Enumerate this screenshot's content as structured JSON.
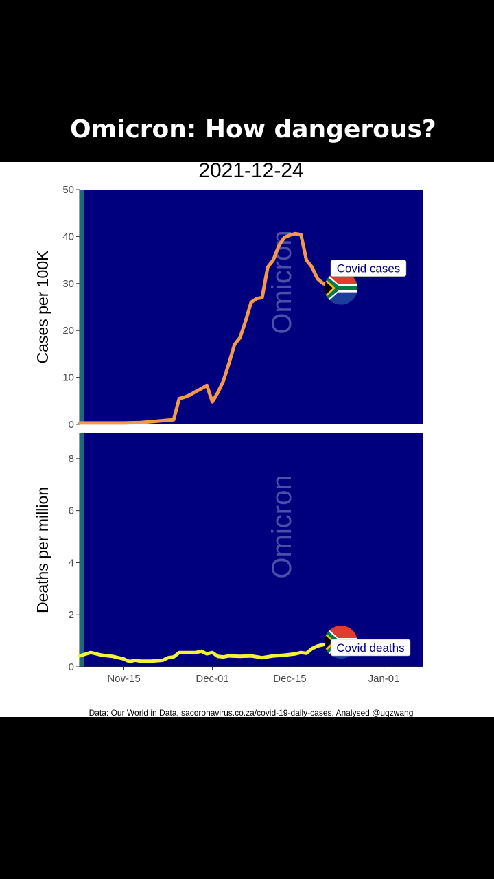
{
  "caption": "Omicron: How dangerous?",
  "date_label": "2021-12-24",
  "watermark": "Omicron",
  "source_note": "Data: Our World in Data, sacoronavirus.co.za/covid-19-daily-cases. Analysed @uqzwang",
  "colors": {
    "plot_bg": "#00007f",
    "cases_line": "#f5984a",
    "deaths_line": "#f2f23a",
    "marker_strip": "#1a6b7a",
    "watermark": "#4a4fa8",
    "label_text": "#00007f"
  },
  "flag_icon": "south-africa-flag-icon",
  "chart_data": [
    {
      "type": "line",
      "ylabel": "Cases per 100K",
      "ylim": [
        0,
        50
      ],
      "yticks": [
        0,
        10,
        20,
        30,
        40,
        50
      ],
      "xlim": [
        "2021-11-07",
        "2022-01-08"
      ],
      "xticks": [
        {
          "date": "2021-11-15",
          "label": "Nov-15"
        },
        {
          "date": "2021-12-01",
          "label": "Dec-01"
        },
        {
          "date": "2021-12-15",
          "label": "Dec-15"
        },
        {
          "date": "2022-01-01",
          "label": "Jan-01"
        }
      ],
      "series": [
        {
          "name": "Covid cases",
          "x": [
            "2021-11-07",
            "2021-11-10",
            "2021-11-13",
            "2021-11-15",
            "2021-11-18",
            "2021-11-21",
            "2021-11-23",
            "2021-11-24",
            "2021-11-25",
            "2021-11-26",
            "2021-11-27",
            "2021-11-28",
            "2021-11-29",
            "2021-11-30",
            "2021-12-01",
            "2021-12-02",
            "2021-12-03",
            "2021-12-04",
            "2021-12-05",
            "2021-12-06",
            "2021-12-07",
            "2021-12-08",
            "2021-12-09",
            "2021-12-10",
            "2021-12-11",
            "2021-12-12",
            "2021-12-13",
            "2021-12-14",
            "2021-12-15",
            "2021-12-16",
            "2021-12-17",
            "2021-12-18",
            "2021-12-19",
            "2021-12-20",
            "2021-12-21",
            "2021-12-22",
            "2021-12-23",
            "2021-12-24"
          ],
          "values": [
            0.3,
            0.3,
            0.3,
            0.3,
            0.4,
            0.7,
            0.9,
            1.0,
            5.5,
            5.8,
            6.3,
            7.0,
            7.6,
            8.3,
            4.8,
            6.8,
            9.3,
            13.0,
            17.0,
            18.5,
            22.0,
            26.0,
            26.8,
            27.0,
            33.5,
            35.0,
            38.0,
            39.8,
            40.3,
            40.6,
            40.4,
            35.0,
            33.5,
            31.0,
            30.0,
            29.6,
            29.3,
            29.0
          ]
        }
      ]
    },
    {
      "type": "line",
      "ylabel": "Deaths per million",
      "ylim": [
        0,
        9
      ],
      "yticks": [
        0,
        2,
        4,
        6,
        8
      ],
      "xlim": [
        "2021-11-07",
        "2022-01-08"
      ],
      "xticks": [
        {
          "date": "2021-11-15",
          "label": "Nov-15"
        },
        {
          "date": "2021-12-01",
          "label": "Dec-01"
        },
        {
          "date": "2021-12-15",
          "label": "Dec-15"
        },
        {
          "date": "2022-01-01",
          "label": "Jan-01"
        }
      ],
      "series": [
        {
          "name": "Covid deaths",
          "x": [
            "2021-11-07",
            "2021-11-09",
            "2021-11-11",
            "2021-11-13",
            "2021-11-15",
            "2021-11-16",
            "2021-11-17",
            "2021-11-18",
            "2021-11-20",
            "2021-11-22",
            "2021-11-23",
            "2021-11-24",
            "2021-11-25",
            "2021-11-27",
            "2021-11-28",
            "2021-11-29",
            "2021-11-30",
            "2021-12-01",
            "2021-12-02",
            "2021-12-03",
            "2021-12-04",
            "2021-12-06",
            "2021-12-08",
            "2021-12-10",
            "2021-12-12",
            "2021-12-14",
            "2021-12-16",
            "2021-12-17",
            "2021-12-18",
            "2021-12-19",
            "2021-12-20",
            "2021-12-21",
            "2021-12-22",
            "2021-12-23",
            "2021-12-24"
          ],
          "values": [
            0.42,
            0.55,
            0.45,
            0.4,
            0.3,
            0.2,
            0.25,
            0.22,
            0.22,
            0.25,
            0.35,
            0.38,
            0.55,
            0.55,
            0.55,
            0.6,
            0.5,
            0.55,
            0.4,
            0.38,
            0.42,
            0.4,
            0.42,
            0.35,
            0.42,
            0.45,
            0.5,
            0.55,
            0.52,
            0.7,
            0.8,
            0.85,
            0.88,
            0.9,
            0.95
          ]
        }
      ]
    }
  ]
}
